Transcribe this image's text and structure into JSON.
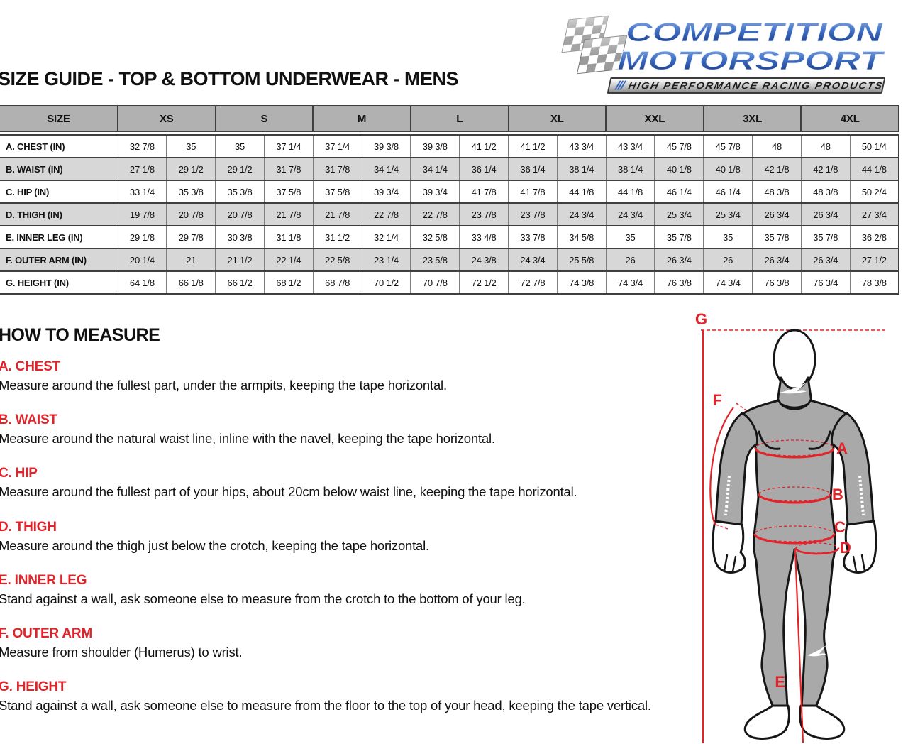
{
  "page": {
    "title_regular": "SIZE GUIDE",
    "title_bold": " - TOP & BOTTOM UNDERWEAR - MENS"
  },
  "logo": {
    "line1": "COMPETITION",
    "line2": "MOTORSPORT",
    "slashes": "///",
    "tagline": "HIGH PERFORMANCE RACING PRODUCTS",
    "colors": {
      "blue_light": "#8fb3e8",
      "blue_dark": "#12307c"
    }
  },
  "size_table": {
    "header_label": "SIZE",
    "sizes": [
      "XS",
      "S",
      "M",
      "L",
      "XL",
      "XXL",
      "3XL",
      "4XL"
    ],
    "rows": [
      {
        "label": "A. CHEST (IN)",
        "values": [
          "32 7/8",
          "35",
          "35",
          "37 1/4",
          "37 1/4",
          "39 3/8",
          "39 3/8",
          "41 1/2",
          "41 1/2",
          "43 3/4",
          "43 3/4",
          "45 7/8",
          "45 7/8",
          "48",
          "48",
          "50 1/4"
        ]
      },
      {
        "label": "B. WAIST (IN)",
        "values": [
          "27 1/8",
          "29 1/2",
          "29 1/2",
          "31 7/8",
          "31 7/8",
          "34 1/4",
          "34 1/4",
          "36 1/4",
          "36 1/4",
          "38 1/4",
          "38 1/4",
          "40 1/8",
          "40 1/8",
          "42 1/8",
          "42 1/8",
          "44 1/8"
        ]
      },
      {
        "label": "C. HIP (IN)",
        "values": [
          "33 1/4",
          "35 3/8",
          "35 3/8",
          "37 5/8",
          "37 5/8",
          "39 3/4",
          "39 3/4",
          "41 7/8",
          "41 7/8",
          "44 1/8",
          "44 1/8",
          "46 1/4",
          "46 1/4",
          "48 3/8",
          "48 3/8",
          "50 2/4"
        ]
      },
      {
        "label": "D. THIGH (IN)",
        "values": [
          "19 7/8",
          "20 7/8",
          "20 7/8",
          "21 7/8",
          "21 7/8",
          "22 7/8",
          "22 7/8",
          "23 7/8",
          "23 7/8",
          "24 3/4",
          "24 3/4",
          "25 3/4",
          "25 3/4",
          "26 3/4",
          "26 3/4",
          "27 3/4"
        ]
      },
      {
        "label": "E. INNER LEG (IN)",
        "values": [
          "29 1/8",
          "29 7/8",
          "30 3/8",
          "31 1/8",
          "31 1/2",
          "32 1/4",
          "32 5/8",
          "33 4/8",
          "33 7/8",
          "34 5/8",
          "35",
          "35 7/8",
          "35",
          "35 7/8",
          "35 7/8",
          "36 2/8"
        ]
      },
      {
        "label": "F. OUTER ARM (IN)",
        "values": [
          "20 1/4",
          "21",
          "21 1/2",
          "22 1/4",
          "22 5/8",
          "23 1/4",
          "23 5/8",
          "24 3/8",
          "24 3/4",
          "25 5/8",
          "26",
          "26 3/4",
          "26",
          "26 3/4",
          "26 3/4",
          "27 1/2"
        ]
      },
      {
        "label": "G. HEIGHT (IN)",
        "values": [
          "64 1/8",
          "66 1/8",
          "66 1/2",
          "68 1/2",
          "68 7/8",
          "70 1/2",
          "70 7/8",
          "72 1/2",
          "72 7/8",
          "74 3/8",
          "74 3/4",
          "76 3/8",
          "74 3/4",
          "76 3/8",
          "76 3/4",
          "78 3/8"
        ]
      }
    ]
  },
  "how_to_measure": {
    "heading": "HOW TO MEASURE",
    "sections": [
      {
        "title": "A. CHEST",
        "desc": "Measure around the fullest part, under the armpits, keeping the tape horizontal."
      },
      {
        "title": "B. WAIST",
        "desc": "Measure around the natural waist line, inline with the navel, keeping the tape horizontal."
      },
      {
        "title": "C. HIP",
        "desc": "Measure around the fullest part of your hips, about 20cm below waist line, keeping the tape horizontal."
      },
      {
        "title": "D. THIGH",
        "desc": "Measure around the thigh just below the crotch, keeping the tape horizontal."
      },
      {
        "title": "E. INNER LEG",
        "desc": "Stand against a wall, ask someone else to measure from the crotch to the bottom of your leg."
      },
      {
        "title": "F. OUTER ARM",
        "desc": "Measure from shoulder (Humerus) to wrist."
      },
      {
        "title": "G. HEIGHT",
        "desc": "Stand against a wall, ask someone else to measure from the floor to the top of your head, keeping the tape vertical."
      }
    ]
  },
  "figure": {
    "labels": {
      "g": "G",
      "f": "F",
      "a": "A",
      "b": "B",
      "c": "C",
      "d": "D",
      "e": "E"
    }
  },
  "colors": {
    "red": "#e2232a",
    "table_header_bg": "#b1b1b1",
    "table_alt_row_bg": "#d7d7d7",
    "body_gray": "#a9a9a9"
  }
}
